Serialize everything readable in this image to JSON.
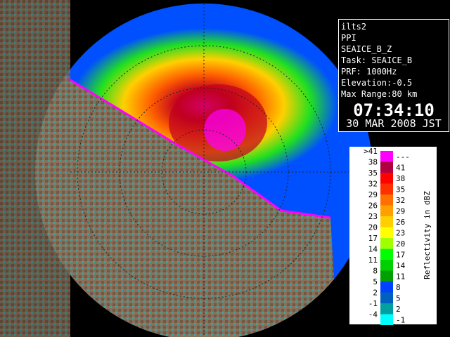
{
  "info": {
    "lines": [
      "ilts2",
      "PPI",
      "SEAICE_B_Z",
      "Task: SEAICE_B",
      "PRF: 1000Hz",
      "Elevation:-0.5",
      "Max Range:80 km"
    ],
    "time": "07:34:10",
    "date": "30 MAR 2008 JST"
  },
  "legend": {
    "title": "Reflectivity in dBZ",
    "rows": [
      {
        "low": ">41",
        "high": "---",
        "color": "#ff00ff"
      },
      {
        "low": "38",
        "high": "41",
        "color": "#b00040"
      },
      {
        "low": "35",
        "high": "38",
        "color": "#ff0000"
      },
      {
        "low": "32",
        "high": "35",
        "color": "#ff3000"
      },
      {
        "low": "29",
        "high": "32",
        "color": "#ff7000"
      },
      {
        "low": "26",
        "high": "29",
        "color": "#ffa000"
      },
      {
        "low": "23",
        "high": "26",
        "color": "#ffd000"
      },
      {
        "low": "20",
        "high": "23",
        "color": "#ffff00"
      },
      {
        "low": "17",
        "high": "20",
        "color": "#a0ff00"
      },
      {
        "low": "14",
        "high": "17",
        "color": "#00ff00"
      },
      {
        "low": "11",
        "high": "14",
        "color": "#00d000"
      },
      {
        "low": "8",
        "high": "11",
        "color": "#00a000"
      },
      {
        "low": "5",
        "high": "8",
        "color": "#0040ff"
      },
      {
        "low": "2",
        "high": "5",
        "color": "#0060c0"
      },
      {
        "low": "-1",
        "high": "2",
        "color": "#00a0a0"
      },
      {
        "low": "-4",
        "high": "-1",
        "color": "#00ffff"
      }
    ]
  }
}
